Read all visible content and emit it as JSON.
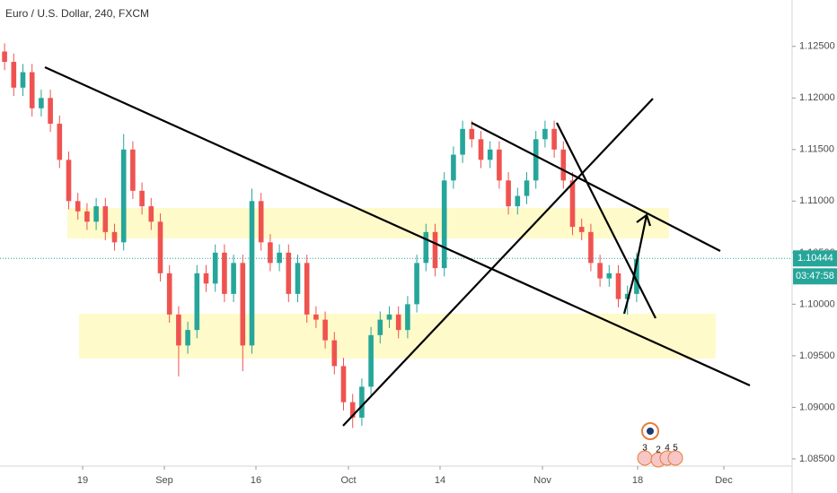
{
  "chart_data": {
    "type": "candlestick",
    "title": "Euro / U.S. Dollar, 240, FXCM",
    "categories": [
      null,
      null,
      null,
      null,
      null,
      null,
      null,
      null,
      null,
      null,
      null,
      null,
      null,
      null,
      null,
      null,
      null,
      null,
      null,
      null,
      null,
      null,
      null,
      null,
      null,
      null,
      null,
      null,
      null,
      null,
      null,
      null,
      null,
      null,
      null,
      null,
      null,
      null,
      null,
      null,
      null,
      null,
      null,
      null,
      null,
      null,
      null,
      null,
      null,
      null,
      null,
      null,
      null,
      null,
      null,
      null,
      null,
      null,
      null,
      null,
      null,
      null,
      null,
      null,
      null,
      null,
      null,
      null,
      null,
      null
    ],
    "open": [
      1.1245,
      1.1235,
      1.121,
      1.1225,
      1.119,
      1.12,
      1.1175,
      1.114,
      1.11,
      1.109,
      1.108,
      1.1095,
      1.107,
      1.106,
      1.115,
      1.111,
      1.1095,
      1.108,
      1.103,
      1.099,
      1.096,
      1.0975,
      1.103,
      1.102,
      1.105,
      1.101,
      1.104,
      1.096,
      1.11,
      1.106,
      1.104,
      1.105,
      1.101,
      1.104,
      1.099,
      1.0985,
      1.0965,
      1.094,
      1.0905,
      1.089,
      1.092,
      1.097,
      1.0985,
      1.099,
      1.0975,
      1.1,
      1.104,
      1.107,
      1.1035,
      1.112,
      1.1145,
      1.117,
      1.116,
      1.114,
      1.115,
      1.112,
      1.1095,
      1.1105,
      1.112,
      1.116,
      1.117,
      1.115,
      1.112,
      1.1075,
      1.107,
      1.104,
      1.1025,
      1.103,
      1.1005,
      1.101
    ],
    "high": [
      1.1253,
      1.1243,
      1.1233,
      1.1233,
      1.1208,
      1.1208,
      1.1183,
      1.1148,
      1.1108,
      1.1098,
      1.1103,
      1.1103,
      1.1078,
      1.1165,
      1.1158,
      1.1118,
      1.1103,
      1.1088,
      1.1038,
      1.0998,
      1.0983,
      1.1038,
      1.1038,
      1.1058,
      1.1058,
      1.1048,
      1.1048,
      1.1112,
      1.1108,
      1.1068,
      1.1058,
      1.1058,
      1.1048,
      1.1048,
      1.0998,
      1.0993,
      1.0973,
      1.0948,
      1.0913,
      1.0928,
      1.0978,
      1.0993,
      1.0998,
      1.0998,
      1.1008,
      1.1048,
      1.1078,
      1.1078,
      1.1128,
      1.1153,
      1.1178,
      1.1178,
      1.1168,
      1.1158,
      1.1158,
      1.1128,
      1.1113,
      1.1128,
      1.1168,
      1.1178,
      1.1178,
      1.1158,
      1.1128,
      1.1083,
      1.1078,
      1.1048,
      1.1038,
      1.1038,
      1.1018,
      1.105
    ],
    "low": [
      1.1227,
      1.1202,
      1.1202,
      1.1182,
      1.1182,
      1.1167,
      1.1132,
      1.1092,
      1.1082,
      1.1072,
      1.1072,
      1.1062,
      1.1052,
      1.1052,
      1.1102,
      1.1087,
      1.1072,
      1.1022,
      1.0982,
      1.093,
      1.0952,
      1.0967,
      1.1012,
      1.1012,
      1.1002,
      1.1002,
      1.0935,
      1.0952,
      1.1052,
      1.1032,
      1.1032,
      1.1002,
      1.1002,
      1.0982,
      1.0977,
      1.0957,
      1.0932,
      1.0897,
      1.088,
      1.0882,
      1.0912,
      1.0962,
      1.0977,
      1.0967,
      1.0967,
      1.0992,
      1.1032,
      1.1027,
      1.1027,
      1.1112,
      1.1137,
      1.1152,
      1.1132,
      1.1132,
      1.1112,
      1.1087,
      1.1087,
      1.1097,
      1.1112,
      1.1152,
      1.1142,
      1.1112,
      1.1067,
      1.1062,
      1.1032,
      1.1017,
      1.1017,
      1.0997,
      1.099,
      1.1002
    ],
    "close": [
      1.1235,
      1.121,
      1.1225,
      1.119,
      1.12,
      1.1175,
      1.114,
      1.11,
      1.109,
      1.108,
      1.1095,
      1.107,
      1.106,
      1.115,
      1.111,
      1.1095,
      1.108,
      1.103,
      1.099,
      1.096,
      1.0975,
      1.103,
      1.102,
      1.105,
      1.101,
      1.104,
      1.096,
      1.11,
      1.106,
      1.104,
      1.105,
      1.101,
      1.104,
      1.099,
      1.0985,
      1.0965,
      1.094,
      1.0905,
      1.089,
      1.092,
      1.097,
      1.0985,
      1.099,
      1.0975,
      1.1,
      1.104,
      1.107,
      1.1035,
      1.112,
      1.1145,
      1.117,
      1.116,
      1.114,
      1.115,
      1.112,
      1.1095,
      1.1105,
      1.112,
      1.116,
      1.117,
      1.115,
      1.112,
      1.1075,
      1.107,
      1.104,
      1.1025,
      1.103,
      1.1005,
      1.101,
      1.1044
    ],
    "up_color": "#26a69a",
    "down_color": "#ef5350",
    "xlim": [
      -0.5,
      85.97
    ],
    "xticks": [
      {
        "value": 8.52,
        "label": "19"
      },
      {
        "value": 17.44,
        "label": "Sep"
      },
      {
        "value": 27.44,
        "label": "16"
      },
      {
        "value": 37.54,
        "label": "Oct"
      },
      {
        "value": 47.54,
        "label": "14"
      },
      {
        "value": 58.72,
        "label": "Nov"
      },
      {
        "value": 69.11,
        "label": "18"
      },
      {
        "value": 78.52,
        "label": "Dec"
      }
    ],
    "ylim": [
      1.0843,
      1.1295
    ],
    "yticks": [
      {
        "value": 1.085,
        "label": "1.08500"
      },
      {
        "value": 1.09,
        "label": "1.09000"
      },
      {
        "value": 1.095,
        "label": "1.09500"
      },
      {
        "value": 1.1,
        "label": "1.10000"
      },
      {
        "value": 1.105,
        "label": "1.10500"
      },
      {
        "value": 1.11,
        "label": "1.11000"
      },
      {
        "value": 1.115,
        "label": "1.11500"
      },
      {
        "value": 1.12,
        "label": "1.12000"
      },
      {
        "value": 1.125,
        "label": "1.12500"
      }
    ],
    "last_price": 1.10444,
    "countdown": "03:47:58",
    "price_color": "#26a69a",
    "events": [
      "3",
      "2",
      "4",
      "5"
    ]
  }
}
